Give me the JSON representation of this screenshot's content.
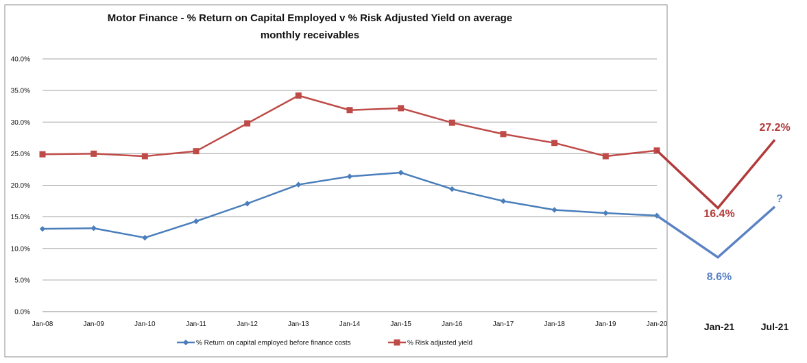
{
  "chart_data": {
    "type": "line",
    "title_lines": [
      "Motor Finance - % Return on Capital Employed v % Risk Adjusted Yield on average",
      "monthly receivables"
    ],
    "categories": [
      "Jan-08",
      "Jan-09",
      "Jan-10",
      "Jan-11",
      "Jan-12",
      "Jan-13",
      "Jan-14",
      "Jan-15",
      "Jan-16",
      "Jan-17",
      "Jan-18",
      "Jan-19",
      "Jan-20"
    ],
    "ylim": [
      0,
      40
    ],
    "yticks": [
      "0.0%",
      "5.0%",
      "10.0%",
      "15.0%",
      "20.0%",
      "25.0%",
      "30.0%",
      "35.0%",
      "40.0%"
    ],
    "grid": true,
    "legend_position": "bottom",
    "series": [
      {
        "name": "% Return on capital employed before finance costs",
        "color": "#4a7ebb",
        "marker": "diamond",
        "values": [
          13.1,
          13.2,
          11.7,
          14.3,
          17.1,
          20.1,
          21.4,
          22.0,
          19.4,
          17.5,
          16.1,
          15.6,
          15.2
        ]
      },
      {
        "name": "% Risk adjusted yield",
        "color": "#be4b48",
        "marker": "square",
        "values": [
          24.9,
          25.0,
          24.6,
          25.4,
          29.8,
          34.2,
          31.9,
          32.2,
          29.9,
          28.1,
          26.7,
          24.6,
          25.5
        ]
      }
    ],
    "extension": {
      "categories": [
        "Jan-21",
        "Jul-21"
      ],
      "roce": {
        "color": "#5b82c4",
        "values": [
          8.6,
          16.6
        ],
        "labels": [
          "8.6%",
          "?"
        ]
      },
      "yield": {
        "color": "#b23a3a",
        "values": [
          16.4,
          27.2
        ],
        "labels": [
          "16.4%",
          "27.2%"
        ]
      }
    }
  }
}
